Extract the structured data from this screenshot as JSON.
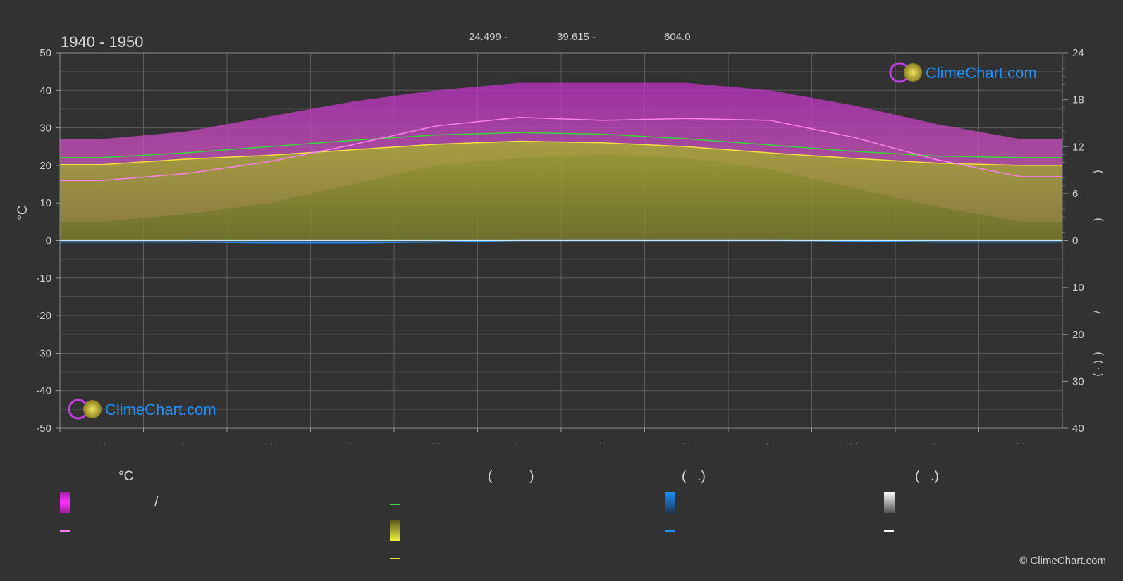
{
  "header": {
    "period": "1940 - 1950",
    "lat": "24.499 -",
    "lon": "39.615 -",
    "elevation": "604.0"
  },
  "brand": {
    "name": "ClimeChart.com",
    "copyright": "© ClimeChart.com"
  },
  "colors": {
    "background": "#323232",
    "temp_range": "#b026b4",
    "temp_mean_line": "#ff7ff0",
    "daylight_line": "#38d838",
    "sunshine_band": "#9a9a30",
    "sunshine_line": "#f0e040",
    "precip_line": "#1e90ff",
    "brand_blue": "#1e90ff"
  },
  "legend": {
    "col1_header": "°C",
    "col1_slash": "/",
    "col2_header": "(          )",
    "col3_header": "(   .)",
    "col4_header": "(   .)"
  },
  "right_axis_labels": {
    "upper_a": ")",
    "upper_b": ")",
    "lower_slash": "/",
    "lower_a": ")",
    "lower_b": "(  ·  )"
  },
  "chart_data": {
    "type": "area",
    "title": "1940 - 1950",
    "ylabel": "°C",
    "ylim": [
      -50,
      50
    ],
    "y_ticks": [
      50,
      40,
      30,
      20,
      10,
      0,
      -10,
      -20,
      -30,
      -40,
      -50
    ],
    "y2_upper_ticks": [
      24,
      18,
      12,
      6,
      0
    ],
    "y2_lower_ticks": [
      10,
      20,
      30,
      40
    ],
    "x_month_labels": [
      "· ·",
      "· ·",
      "· ·",
      "· ·",
      "· ·",
      "· ·",
      "· ·",
      "· ·",
      "· ·",
      "· ·",
      "· ·",
      "· ·"
    ],
    "grid": true,
    "x": [
      0.5,
      1.5,
      2.5,
      3.5,
      4.5,
      5.5,
      6.5,
      7.5,
      8.5,
      9.5,
      10.5,
      11.5
    ],
    "series": [
      {
        "key": "temp_max_band",
        "values": [
          27,
          29,
          33,
          37,
          40,
          42,
          42,
          42,
          40,
          36,
          31,
          27
        ]
      },
      {
        "key": "temp_min_band",
        "values": [
          5,
          7,
          10,
          15,
          20,
          22,
          23,
          22,
          19,
          14,
          9,
          5
        ]
      },
      {
        "key": "temp_mean",
        "values": [
          16,
          17.8,
          21,
          25.5,
          30.5,
          32.8,
          32,
          32.5,
          32,
          27.5,
          21.5,
          17
        ]
      },
      {
        "key": "daylight_hours",
        "values": [
          10.6,
          11.2,
          12.0,
          12.8,
          13.5,
          13.8,
          13.6,
          13.0,
          12.2,
          11.4,
          10.8,
          10.6
        ]
      },
      {
        "key": "sunshine_hours",
        "values": [
          9.7,
          10.4,
          10.9,
          11.6,
          12.3,
          12.7,
          12.5,
          12.0,
          11.2,
          10.5,
          9.9,
          9.6
        ]
      },
      {
        "key": "precip_mm",
        "values": [
          0.3,
          0.3,
          0.5,
          0.5,
          0.3,
          0.0,
          0.0,
          0.0,
          0.0,
          0.1,
          0.3,
          0.3
        ]
      }
    ]
  }
}
